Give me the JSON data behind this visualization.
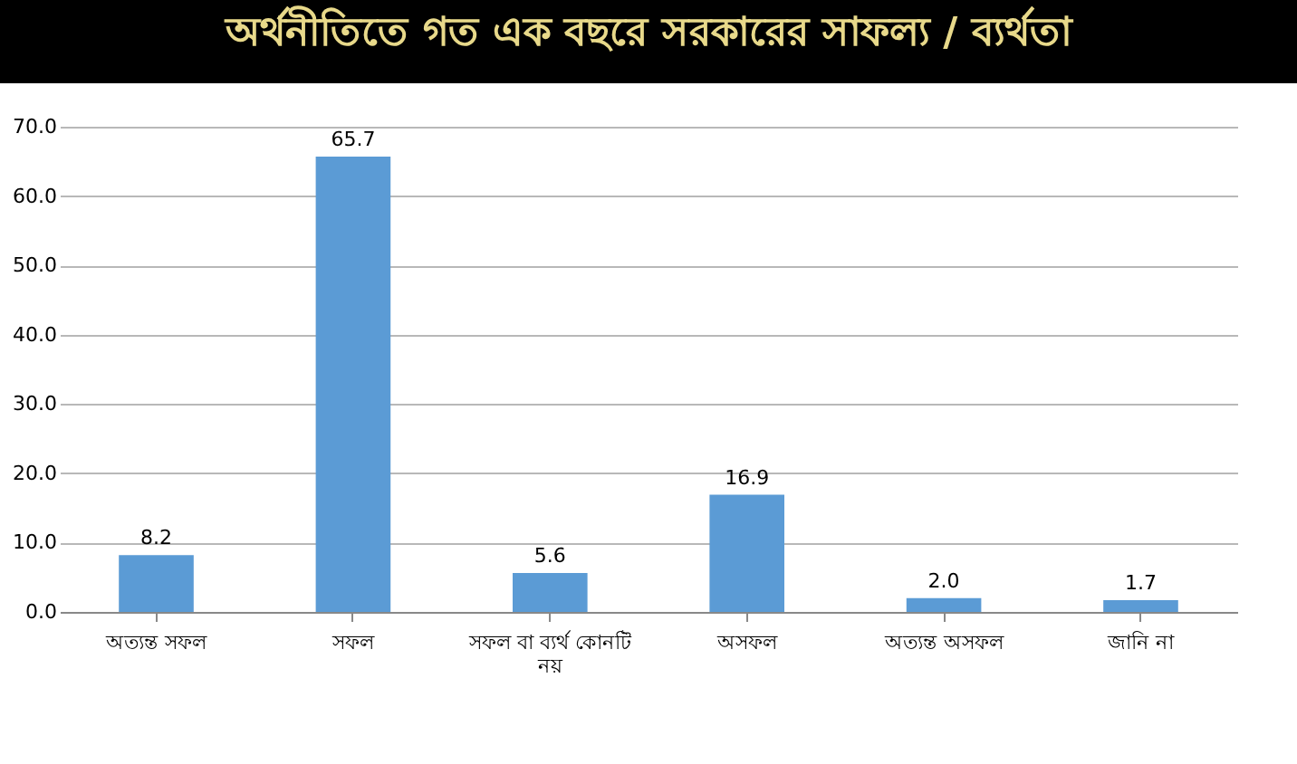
{
  "chart_data": {
    "type": "bar",
    "title": "অর্থনীতিতে গত এক বছরে সরকারের সাফল্য / ব্যর্থতা",
    "categories": [
      "অত্যন্ত সফল",
      "সফল",
      "সফল বা ব্যর্থ কোনটি নয়",
      "অসফল",
      "অত্যন্ত অসফল",
      "জানি না"
    ],
    "values": [
      8.2,
      65.7,
      5.6,
      16.9,
      2.0,
      1.7
    ],
    "value_labels": [
      "8.2",
      "65.7",
      "5.6",
      "16.9",
      "2.0",
      "1.7"
    ],
    "color": "#5b9bd5",
    "ylim": [
      0,
      70
    ],
    "yticks": [
      {
        "value": 0,
        "label": "0.0"
      },
      {
        "value": 10,
        "label": "10.0"
      },
      {
        "value": 20,
        "label": "20.0"
      },
      {
        "value": 30,
        "label": "30.0"
      },
      {
        "value": 40,
        "label": "40.0"
      },
      {
        "value": 50,
        "label": "50.0"
      },
      {
        "value": 60,
        "label": "60.0"
      },
      {
        "value": 70,
        "label": "70.0"
      }
    ],
    "grid": "y"
  }
}
